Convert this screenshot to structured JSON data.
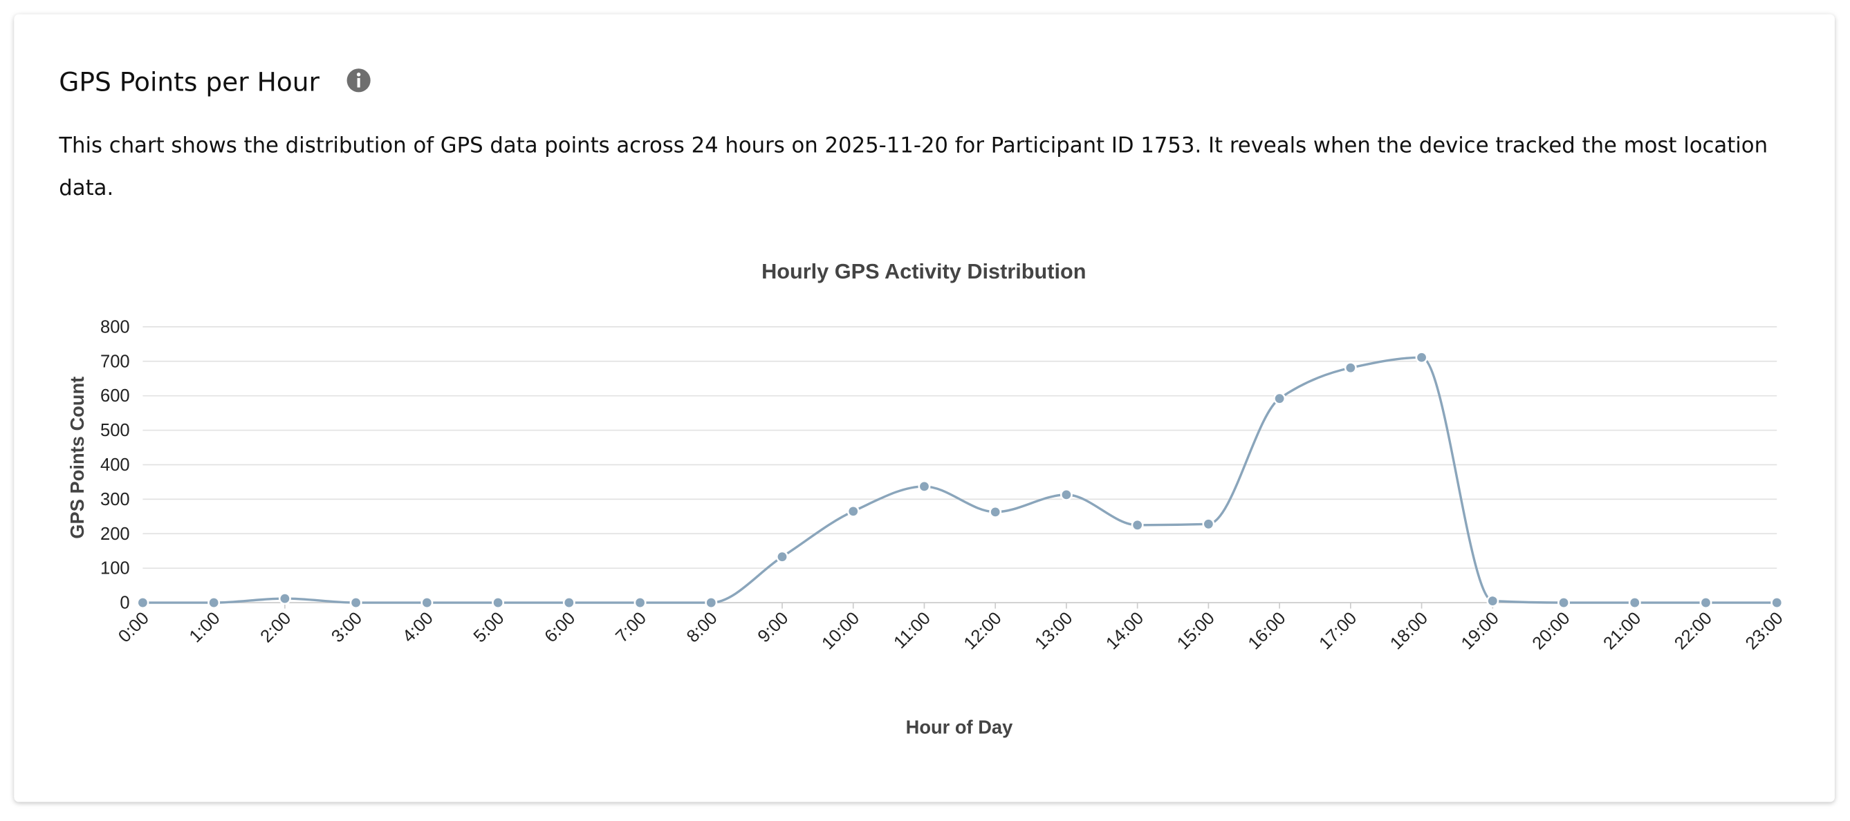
{
  "header": {
    "title": "GPS Points per Hour",
    "description": "This chart shows the distribution of GPS data points across 24 hours on 2025-11-20 for Participant ID 1753. It reveals when the device tracked the most location data."
  },
  "chart_data": {
    "type": "line",
    "title": "Hourly GPS Activity Distribution",
    "x_label": "Hour of Day",
    "y_label": "GPS Points Count",
    "categories": [
      "0:00",
      "1:00",
      "2:00",
      "3:00",
      "4:00",
      "5:00",
      "6:00",
      "7:00",
      "8:00",
      "9:00",
      "10:00",
      "11:00",
      "12:00",
      "13:00",
      "14:00",
      "15:00",
      "16:00",
      "17:00",
      "18:00",
      "19:00",
      "20:00",
      "21:00",
      "22:00",
      "23:00"
    ],
    "values": [
      0,
      0,
      12,
      0,
      0,
      0,
      0,
      0,
      0,
      133,
      265,
      337,
      263,
      313,
      225,
      228,
      592,
      681,
      711,
      5,
      0,
      0,
      0,
      0
    ],
    "color": "#8aa5bb",
    "ylim": [
      0,
      800
    ],
    "yticks": [
      0,
      100,
      200,
      300,
      400,
      500,
      600,
      700,
      800
    ],
    "grid": true
  }
}
